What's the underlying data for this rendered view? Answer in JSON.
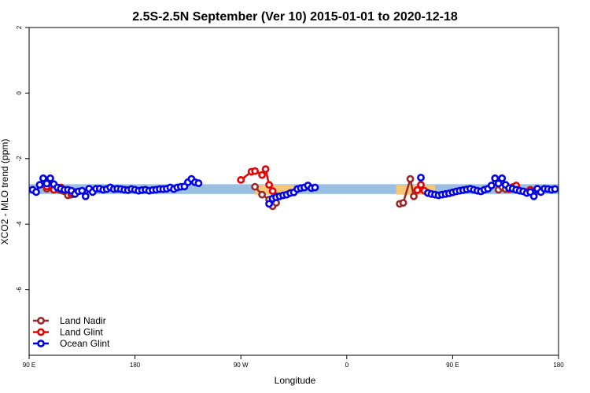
{
  "chart_data": {
    "type": "line",
    "title": "2.5S-2.5N September (Ver 10)   2015-01-01 to 2020-12-18",
    "xlabel": "Longitude",
    "ylabel": "XCO2 - MLO trend (ppm)",
    "xlim": [
      90,
      240
    ],
    "ylim": [
      -8,
      2
    ],
    "x_ticks": [
      {
        "value": 90,
        "label": "90 E"
      },
      {
        "value": 120,
        "label": "180"
      },
      {
        "value": 150,
        "label": "90 W"
      },
      {
        "value": 180,
        "label": "0"
      },
      {
        "value": 210,
        "label": "90 E"
      },
      {
        "value": 240,
        "label": "180"
      }
    ],
    "y_ticks": [
      {
        "value": 2,
        "label": "2"
      },
      {
        "value": 0,
        "label": "0"
      },
      {
        "value": -2,
        "label": "-2"
      },
      {
        "value": -4,
        "label": "-4"
      },
      {
        "value": -6,
        "label": "-6"
      }
    ],
    "grid": false,
    "legend_position": "bottom-left",
    "bands": [
      {
        "name": "ocean-band",
        "color": "#9bbfe3",
        "x": [
          90,
          240
        ],
        "y": [
          -3.08,
          -2.78
        ]
      },
      {
        "name": "land-band",
        "color": "#f6c77a",
        "segments": [
          {
            "x": [
              154,
              165
            ],
            "y": [
              -3.1,
              -2.8
            ]
          },
          {
            "x": [
              194,
              205
            ],
            "y": [
              -3.1,
              -2.8
            ]
          }
        ]
      }
    ],
    "series": [
      {
        "name": "Land Nadir",
        "color": "#992828",
        "segments": [
          [
            [
              94,
              -2.78
            ],
            [
              95,
              -2.92
            ],
            [
              101,
              -3.12
            ],
            [
              102,
              -3.1
            ]
          ],
          [
            [
              154,
              -2.86
            ],
            [
              156,
              -3.1
            ],
            [
              158,
              -3.25
            ],
            [
              159,
              -3.45
            ],
            [
              160,
              -3.35
            ]
          ],
          [
            [
              195,
              -3.38
            ],
            [
              196,
              -3.35
            ],
            [
              198,
              -2.62
            ],
            [
              199,
              -3.15
            ],
            [
              200,
              -2.96
            ]
          ],
          [
            [
              223,
              -2.95
            ],
            [
              224,
              -2.86
            ],
            [
              225,
              -2.93
            ],
            [
              233,
              -3.1
            ],
            [
              234,
              -2.92
            ]
          ]
        ]
      },
      {
        "name": "Land Glint",
        "color": "#e60000",
        "segments": [
          [
            [
              95,
              -2.85
            ],
            [
              97,
              -2.95
            ],
            [
              99,
              -2.88
            ],
            [
              102,
              -3.05
            ],
            [
              103,
              -3.02
            ]
          ],
          [
            [
              150,
              -2.65
            ],
            [
              153,
              -2.4
            ],
            [
              154,
              -2.38
            ],
            [
              156,
              -2.5
            ],
            [
              157,
              -2.32
            ],
            [
              158,
              -2.8
            ],
            [
              159,
              -2.99
            ],
            [
              160,
              -3.15
            ]
          ],
          [
            [
              200,
              -2.96
            ],
            [
              201,
              -2.8
            ],
            [
              202,
              -2.98
            ],
            [
              203,
              -3.05
            ]
          ],
          [
            [
              226,
              -2.93
            ],
            [
              227,
              -2.87
            ],
            [
              228,
              -2.82
            ],
            [
              231,
              -3.02
            ],
            [
              232,
              -2.95
            ]
          ]
        ]
      },
      {
        "name": "Ocean Glint",
        "color": "#0000e6",
        "segments": [
          [
            [
              91,
              -2.95
            ],
            [
              92,
              -3.02
            ],
            [
              93,
              -2.8
            ],
            [
              94,
              -2.6
            ],
            [
              95,
              -2.76
            ],
            [
              96,
              -2.6
            ],
            [
              97,
              -2.78
            ],
            [
              98,
              -2.88
            ],
            [
              99,
              -2.92
            ],
            [
              100,
              -2.95
            ],
            [
              101,
              -2.95
            ],
            [
              102,
              -2.98
            ],
            [
              103,
              -3.08
            ],
            [
              104,
              -3.0
            ],
            [
              105,
              -2.98
            ],
            [
              106,
              -3.15
            ],
            [
              107,
              -2.92
            ],
            [
              108,
              -3.02
            ],
            [
              109,
              -2.92
            ],
            [
              110,
              -2.92
            ],
            [
              111,
              -2.95
            ],
            [
              112,
              -2.93
            ],
            [
              113,
              -2.88
            ],
            [
              114,
              -2.93
            ],
            [
              115,
              -2.92
            ],
            [
              116,
              -2.93
            ],
            [
              117,
              -2.95
            ],
            [
              118,
              -2.96
            ],
            [
              119,
              -2.93
            ],
            [
              120,
              -2.95
            ],
            [
              121,
              -2.98
            ],
            [
              122,
              -2.96
            ],
            [
              123,
              -2.95
            ],
            [
              124,
              -2.98
            ],
            [
              125,
              -2.96
            ],
            [
              126,
              -2.95
            ],
            [
              127,
              -2.93
            ],
            [
              128,
              -2.93
            ],
            [
              129,
              -2.92
            ],
            [
              130,
              -2.88
            ],
            [
              131,
              -2.93
            ],
            [
              132,
              -2.88
            ],
            [
              133,
              -2.86
            ],
            [
              134,
              -2.85
            ],
            [
              135,
              -2.72
            ],
            [
              136,
              -2.62
            ],
            [
              137,
              -2.72
            ],
            [
              138,
              -2.75
            ]
          ],
          [
            [
              158,
              -3.38
            ],
            [
              159,
              -3.22
            ],
            [
              160,
              -3.18
            ],
            [
              161,
              -3.15
            ],
            [
              162,
              -3.12
            ],
            [
              163,
              -3.1
            ],
            [
              164,
              -3.05
            ],
            [
              165,
              -3.03
            ],
            [
              166,
              -2.93
            ],
            [
              167,
              -2.9
            ],
            [
              168,
              -2.88
            ],
            [
              169,
              -2.82
            ],
            [
              170,
              -2.9
            ],
            [
              171,
              -2.88
            ]
          ],
          [
            [
              201,
              -2.58
            ]
          ],
          [
            [
              203,
              -3.05
            ],
            [
              204,
              -3.08
            ],
            [
              205,
              -3.1
            ],
            [
              206,
              -3.12
            ],
            [
              207,
              -3.1
            ],
            [
              208,
              -3.08
            ],
            [
              209,
              -3.06
            ],
            [
              210,
              -3.03
            ],
            [
              211,
              -3.0
            ],
            [
              212,
              -2.98
            ],
            [
              213,
              -2.96
            ],
            [
              214,
              -2.94
            ],
            [
              215,
              -2.92
            ],
            [
              216,
              -2.95
            ],
            [
              217,
              -2.98
            ],
            [
              218,
              -3.0
            ],
            [
              219,
              -2.95
            ],
            [
              220,
              -2.92
            ],
            [
              221,
              -2.82
            ],
            [
              222,
              -2.6
            ],
            [
              223,
              -2.76
            ],
            [
              224,
              -2.6
            ],
            [
              225,
              -2.8
            ],
            [
              226,
              -2.9
            ],
            [
              227,
              -2.92
            ],
            [
              228,
              -2.95
            ],
            [
              229,
              -2.98
            ],
            [
              230,
              -3.0
            ],
            [
              231,
              -3.05
            ],
            [
              232,
              -3.02
            ],
            [
              233,
              -3.15
            ],
            [
              234,
              -2.92
            ],
            [
              235,
              -3.02
            ],
            [
              236,
              -2.92
            ],
            [
              237,
              -2.93
            ],
            [
              238,
              -2.95
            ],
            [
              239,
              -2.93
            ]
          ]
        ]
      }
    ]
  }
}
